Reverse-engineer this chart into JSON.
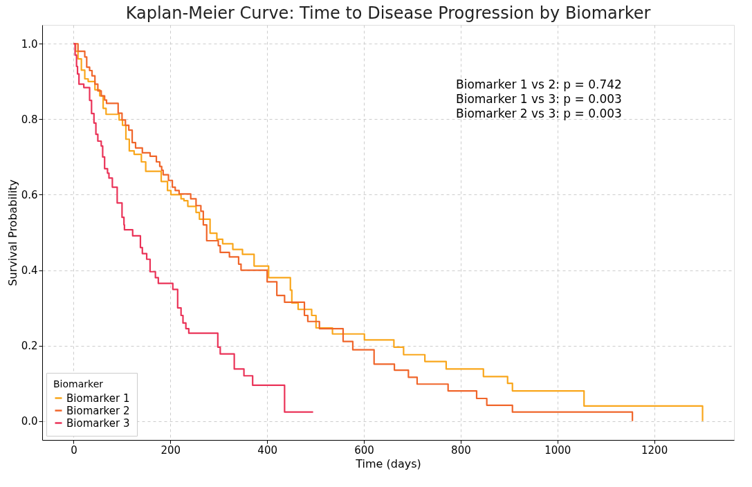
{
  "chart_data": {
    "type": "step",
    "title": "Kaplan-Meier Curve: Time to Disease Progression by Biomarker",
    "xlabel": "Time (days)",
    "ylabel": "Survival Probability",
    "legend_title": "Biomarker",
    "legend": "bottom left",
    "grid": true,
    "marker": "none",
    "line_style": "solid",
    "xlim": [
      -65,
      1365
    ],
    "xticks": [
      0,
      200,
      400,
      600,
      800,
      1000,
      1200
    ],
    "ylim": [
      -0.05,
      1.05
    ],
    "yticks": [
      {
        "value": 0,
        "label": "0.0"
      },
      {
        "value": 0.2,
        "label": "0.2"
      },
      {
        "value": 0.4,
        "label": "0.4"
      },
      {
        "value": 0.6,
        "label": "0.6"
      },
      {
        "value": 0.8,
        "label": "0.8"
      },
      {
        "value": 1,
        "label": "1.0"
      }
    ],
    "annotations": [
      "Biomarker 1 vs 2: p = 0.742",
      "Biomarker 1 vs 3: p = 0.003",
      "Biomarker 2 vs 3: p = 0.003"
    ],
    "series": [
      {
        "name": "Biomarker 1",
        "color": "#f9a61b",
        "x": [
          0,
          4,
          9,
          16,
          23,
          30,
          44,
          54,
          61,
          67,
          94,
          101,
          108,
          115,
          125,
          140,
          149,
          181,
          194,
          201,
          222,
          228,
          236,
          253,
          260,
          282,
          296,
          308,
          329,
          349,
          373,
          403,
          448,
          451,
          464,
          492,
          501,
          535,
          601,
          662,
          682,
          726,
          770,
          847,
          897,
          907,
          1055,
          1300
        ],
        "values": [
          1.0,
          0.98,
          0.96,
          0.93,
          0.907,
          0.9,
          0.878,
          0.862,
          0.829,
          0.813,
          0.798,
          0.784,
          0.747,
          0.716,
          0.707,
          0.687,
          0.662,
          0.635,
          0.611,
          0.6,
          0.589,
          0.584,
          0.569,
          0.553,
          0.535,
          0.498,
          0.482,
          0.47,
          0.455,
          0.442,
          0.411,
          0.38,
          0.347,
          0.313,
          0.296,
          0.28,
          0.247,
          0.231,
          0.215,
          0.196,
          0.176,
          0.158,
          0.138,
          0.118,
          0.1,
          0.08,
          0.04,
          0.0
        ]
      },
      {
        "name": "Biomarker 2",
        "color": "#f0652a",
        "x": [
          0,
          9,
          23,
          27,
          33,
          38,
          44,
          50,
          57,
          64,
          68,
          92,
          100,
          107,
          114,
          121,
          128,
          142,
          158,
          171,
          178,
          182,
          185,
          196,
          204,
          210,
          218,
          242,
          253,
          263,
          268,
          275,
          299,
          303,
          322,
          341,
          346,
          400,
          420,
          436,
          477,
          484,
          508,
          557,
          577,
          621,
          663,
          692,
          710,
          774,
          833,
          854,
          907,
          1155
        ],
        "values": [
          1.0,
          0.98,
          0.965,
          0.938,
          0.929,
          0.915,
          0.893,
          0.875,
          0.862,
          0.851,
          0.842,
          0.816,
          0.798,
          0.784,
          0.771,
          0.738,
          0.724,
          0.711,
          0.702,
          0.687,
          0.675,
          0.665,
          0.653,
          0.638,
          0.62,
          0.611,
          0.602,
          0.589,
          0.571,
          0.556,
          0.52,
          0.478,
          0.465,
          0.447,
          0.435,
          0.416,
          0.4,
          0.369,
          0.333,
          0.315,
          0.28,
          0.264,
          0.245,
          0.211,
          0.189,
          0.151,
          0.135,
          0.116,
          0.098,
          0.08,
          0.06,
          0.042,
          0.024,
          0.0
        ]
      },
      {
        "name": "Biomarker 3",
        "color": "#ea3358",
        "x": [
          0,
          3,
          6,
          8,
          11,
          21,
          33,
          37,
          42,
          46,
          50,
          57,
          60,
          64,
          70,
          73,
          80,
          90,
          100,
          104,
          105,
          122,
          138,
          142,
          151,
          158,
          169,
          175,
          205,
          215,
          222,
          226,
          232,
          238,
          298,
          303,
          332,
          352,
          370,
          436,
          495
        ],
        "values": [
          1.0,
          0.97,
          0.94,
          0.92,
          0.893,
          0.884,
          0.85,
          0.815,
          0.79,
          0.76,
          0.742,
          0.729,
          0.7,
          0.669,
          0.657,
          0.644,
          0.62,
          0.578,
          0.54,
          0.52,
          0.507,
          0.491,
          0.46,
          0.444,
          0.429,
          0.396,
          0.38,
          0.365,
          0.349,
          0.3,
          0.28,
          0.26,
          0.245,
          0.233,
          0.196,
          0.178,
          0.138,
          0.12,
          0.095,
          0.024,
          0.024
        ]
      }
    ]
  }
}
